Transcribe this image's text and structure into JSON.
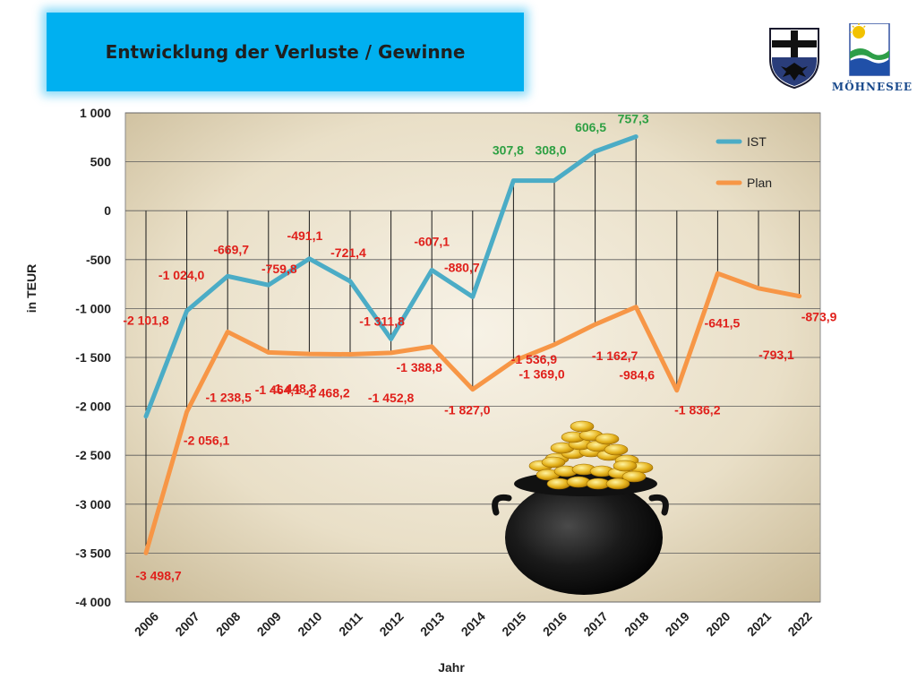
{
  "header": {
    "title": "Entwicklung der Verluste / Gewinne",
    "logo_text": "MÖHNESEE"
  },
  "chart_data": {
    "type": "line",
    "title": "Entwicklung der Verluste / Gewinne",
    "xlabel": "Jahr",
    "ylabel": "in TEUR",
    "ylim": [
      -4000,
      1000
    ],
    "yticks": [
      1000,
      500,
      0,
      -500,
      -1000,
      -1500,
      -2000,
      -2500,
      -3000,
      -3500,
      -4000
    ],
    "ytick_labels": [
      "1 000",
      "500",
      "0",
      "-500",
      "-1 000",
      "-1 500",
      "-2 000",
      "-2 500",
      "-3 000",
      "-3 500",
      "-4 000"
    ],
    "categories": [
      "2006",
      "2007",
      "2008",
      "2009",
      "2010",
      "2011",
      "2012",
      "2013",
      "2014",
      "2015",
      "2016",
      "2017",
      "2018",
      "2019",
      "2020",
      "2021",
      "2022"
    ],
    "grid": true,
    "legend": "top-right",
    "series": [
      {
        "name": "IST",
        "color": "#4bacc6",
        "values": [
          -2101.8,
          -1024.0,
          -669.7,
          -759.8,
          -491.1,
          -721.4,
          -1311.8,
          -607.1,
          -880.7,
          307.8,
          308.0,
          606.5,
          757.3,
          null,
          null,
          null,
          null
        ],
        "labels": [
          "-2 101,8",
          "-1 024,0",
          "-669,7",
          "-759,8",
          "-491,1",
          "-721,4",
          "-1 311,8",
          "-607,1",
          "-880,7",
          "307,8",
          "308,0",
          "606,5",
          "757,3",
          "",
          "",
          "",
          ""
        ]
      },
      {
        "name": "Plan",
        "color": "#f79646",
        "values": [
          -3498.7,
          -2056.1,
          -1238.5,
          -1448.3,
          -1464.1,
          -1468.2,
          -1452.8,
          -1388.8,
          -1827.0,
          -1536.9,
          -1369.0,
          -1162.7,
          -984.6,
          -1836.2,
          -641.5,
          -793.1,
          -873.9
        ],
        "labels": [
          "-3 498,7",
          "-2 056,1",
          "-1 238,5",
          "-1 448,3",
          "-1 464,1",
          "-1 468,2",
          "-1 452,8",
          "-1 388,8",
          "-1 827,0",
          "-1 536,9",
          "-1 369,0",
          "-1 162,7",
          "-984,6",
          "-1 836,2",
          "-641,5",
          "-793,1",
          "-873,9"
        ]
      }
    ],
    "label_colors": {
      "negative": "#e0201b",
      "positive": "#2ea043"
    }
  }
}
